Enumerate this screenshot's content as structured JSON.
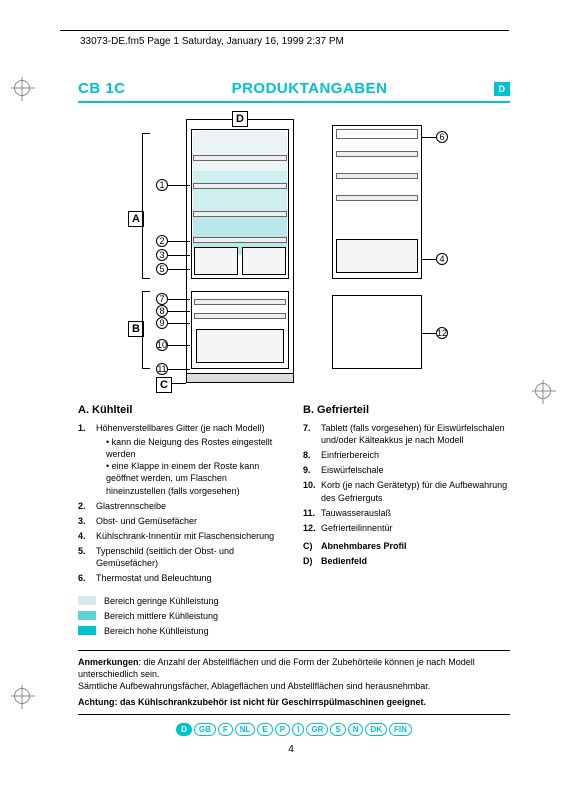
{
  "header": "33073-DE.fm5  Page 1  Saturday, January 16, 1999  2:37 PM",
  "title": {
    "left": "CB 1C",
    "mid": "PRODUKTANGABEN",
    "badge": "D"
  },
  "labels": {
    "A": "A",
    "B": "B",
    "C": "C",
    "D": "D"
  },
  "callouts": [
    "1",
    "2",
    "3",
    "4",
    "5",
    "6",
    "7",
    "8",
    "9",
    "10",
    "11",
    "12"
  ],
  "colA": {
    "heading": "A.    Kühlteil",
    "items": [
      {
        "n": "1.",
        "t": "Höhenverstellbares Gitter (je nach Modell)",
        "sub": [
          "kann die Neigung des Rostes eingestellt werden",
          "eine Klappe in einem der Roste kann geöffnet werden, um Flaschen hineinzustellen (falls vorgesehen)"
        ]
      },
      {
        "n": "2.",
        "t": "Glastrennscheibe"
      },
      {
        "n": "3.",
        "t": "Obst- und Gemüsefächer"
      },
      {
        "n": "4.",
        "t": "Kühlschrank-Innentür mit Flaschensicherung"
      },
      {
        "n": "5.",
        "t": "Typenschild (seitlich der Obst- und Gemüsefächer)"
      },
      {
        "n": "6.",
        "t": "Thermostat und Beleuchtung"
      }
    ]
  },
  "colB": {
    "heading": "B.    Gefrierteil",
    "items": [
      {
        "n": "7.",
        "t": "Tablett (falls vorgesehen) für Eiswürfelschalen und/oder Kälteakkus je nach Modell"
      },
      {
        "n": "8.",
        "t": "Einfrierbereich"
      },
      {
        "n": "9.",
        "t": "Eiswürfelschale"
      },
      {
        "n": "10.",
        "t": "Korb (je nach Gerätetyp) für die Aufbewahrung des Gefrierguts"
      },
      {
        "n": "11.",
        "t": "Tauwasserauslaß"
      },
      {
        "n": "12.",
        "t": "Gefrierteilinnentür"
      }
    ],
    "cd": [
      {
        "n": "C)",
        "t": "Abnehmbares Profil"
      },
      {
        "n": "D)",
        "t": "Bedienfeld"
      }
    ]
  },
  "legend": {
    "rows": [
      {
        "color": "#d7e9ef",
        "label": "Bereich geringe Kühlleistung"
      },
      {
        "color": "#5fd4d9",
        "label": "Bereich mittlere Kühlleistung"
      },
      {
        "color": "#00c2d1",
        "label": "Bereich hohe Kühlleistung"
      }
    ]
  },
  "notes": {
    "line1_b": "Anmerkungen",
    "line1": ": die Anzahl der Abstellflächen und die Form der Zubehörteile können je nach Modell unterschiedlich sein.",
    "line2": "Sämtliche Aufbewahrungsfächer, Ablageflächen und Abstellflächen sind herausnehmbar.",
    "warn": "Achtung: das Kühlschrankzubehör ist nicht für Geschirrspülmaschinen geeignet."
  },
  "langs": [
    "D",
    "GB",
    "F",
    "NL",
    "E",
    "P",
    "I",
    "GR",
    "S",
    "N",
    "DK",
    "FIN"
  ],
  "active_lang": "D",
  "page_num": "4",
  "colors": {
    "cyan": "#00c2d1",
    "grid": "#e0e0e0"
  }
}
